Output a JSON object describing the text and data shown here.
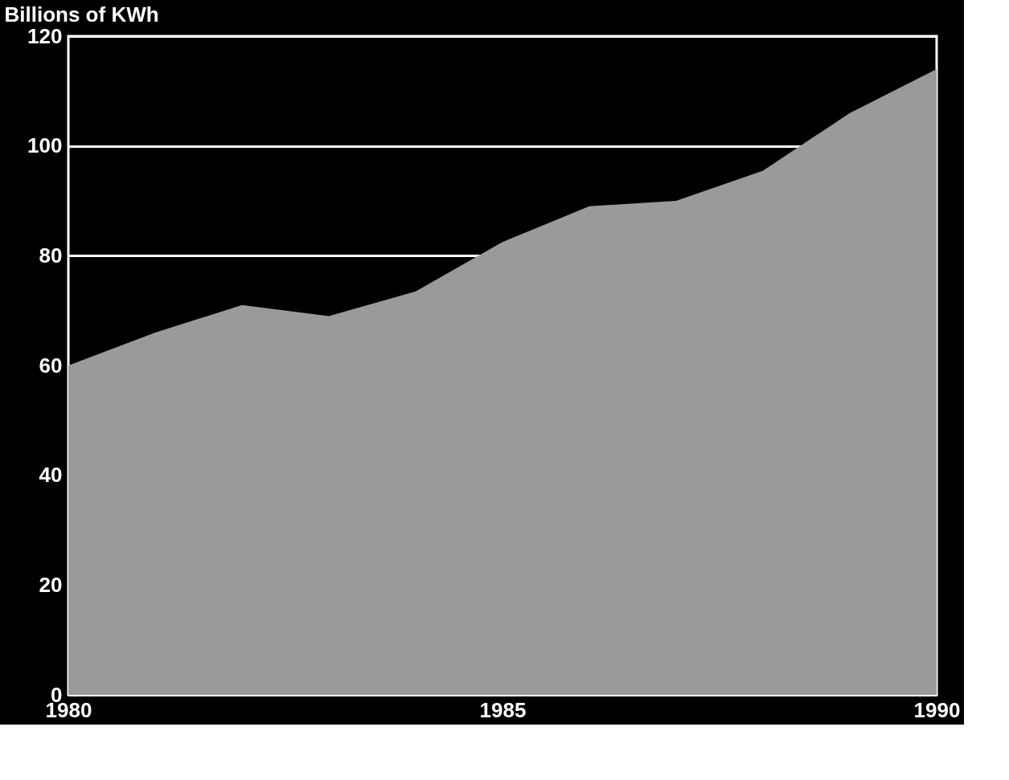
{
  "chart_data": {
    "type": "area",
    "ylabel": "Billions of KWh",
    "x": [
      1980,
      1981,
      1982,
      1983,
      1984,
      1985,
      1986,
      1987,
      1988,
      1989,
      1990
    ],
    "series": [
      {
        "color": "#9a9a9a",
        "values": [
          60,
          66,
          71,
          69,
          73.5,
          82.5,
          89,
          90,
          95.5,
          106,
          114
        ]
      }
    ],
    "xlim": [
      1980,
      1990
    ],
    "xticks": [
      1980,
      1985,
      1990
    ],
    "ylim": [
      0,
      120
    ],
    "yticks": [
      0,
      20,
      40,
      60,
      80,
      100,
      120
    ],
    "grid": "y"
  }
}
